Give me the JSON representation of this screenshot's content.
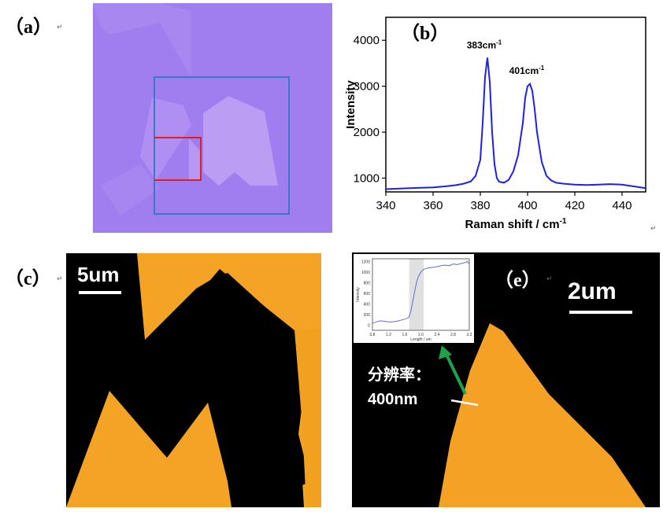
{
  "panels": {
    "a": {
      "label": "（a）",
      "colors": {
        "substrate": "#a07ef0",
        "flake": "#b496f2",
        "outer_box": "#3a78c8",
        "inner_box": "#e02020"
      }
    },
    "b": {
      "label": "（b）"
    },
    "c": {
      "label": "（c）",
      "scale_bar": "5um"
    },
    "e": {
      "label": "（e）",
      "scale_bar": "2um",
      "annotation_line1": "分辨率：",
      "annotation_line2": "400nm",
      "arrow_color": "#1fa34a",
      "inset": {
        "ylabel": "Intensity",
        "xlabel": "Length / um",
        "yticks": [
          "0",
          "200",
          "400",
          "600",
          "800",
          "1000",
          "1200"
        ],
        "xticks": [
          "0.8",
          "1.2",
          "1.6",
          "2.0",
          "2.4",
          "2.8",
          "3.2"
        ]
      }
    }
  },
  "return_mark": "↵",
  "chart_data": [
    {
      "type": "line",
      "panel": "b",
      "xlabel": "Raman shift / cm",
      "xlabel_sup": "-1",
      "ylabel": "Intensity",
      "xlim": [
        340,
        450
      ],
      "ylim": [
        700,
        4500
      ],
      "xticks": [
        340,
        360,
        380,
        400,
        420,
        440
      ],
      "yticks": [
        1000,
        2000,
        3000,
        4000
      ],
      "color": "#2020e0",
      "annotations": [
        {
          "text": "383cm",
          "sup": "-1",
          "x": 383,
          "y": 3650
        },
        {
          "text": "401cm",
          "sup": "-1",
          "x": 401,
          "y": 3100
        }
      ],
      "series": [
        {
          "x": [
            340,
            345,
            350,
            355,
            360,
            365,
            370,
            373,
            376,
            378,
            380,
            381,
            382,
            383,
            384,
            385,
            386,
            387,
            388,
            390,
            392,
            394,
            396,
            398,
            399,
            400,
            401,
            402,
            403,
            404,
            406,
            408,
            410,
            412,
            415,
            420,
            425,
            430,
            435,
            440,
            445,
            450
          ],
          "y": [
            760,
            770,
            780,
            790,
            800,
            820,
            850,
            880,
            930,
            1050,
            1400,
            2200,
            3200,
            3620,
            3100,
            2000,
            1300,
            1000,
            920,
            900,
            960,
            1150,
            1500,
            2200,
            2750,
            3000,
            3050,
            2900,
            2500,
            2000,
            1350,
            1050,
            950,
            900,
            880,
            860,
            850,
            860,
            870,
            860,
            820,
            780
          ]
        }
      ]
    },
    {
      "type": "line",
      "panel": "e-inset",
      "xlabel": "Length / um",
      "ylabel": "Intensity",
      "xlim": [
        0.8,
        3.2
      ],
      "ylim": [
        -100,
        1250
      ],
      "shaded_x": [
        1.71,
        2.07
      ],
      "series": [
        {
          "x": [
            0.8,
            0.9,
            1.0,
            1.1,
            1.2,
            1.3,
            1.4,
            1.5,
            1.6,
            1.7,
            1.75,
            1.8,
            1.85,
            1.9,
            1.95,
            2.0,
            2.05,
            2.1,
            2.2,
            2.3,
            2.4,
            2.5,
            2.6,
            2.7,
            2.8,
            2.9,
            3.0,
            3.1,
            3.15,
            3.2
          ],
          "y": [
            30,
            60,
            80,
            70,
            60,
            60,
            70,
            90,
            110,
            140,
            250,
            450,
            650,
            830,
            930,
            1000,
            1040,
            1060,
            1080,
            1090,
            1100,
            1120,
            1130,
            1120,
            1150,
            1140,
            1160,
            1180,
            1200,
            1150
          ]
        }
      ]
    }
  ]
}
